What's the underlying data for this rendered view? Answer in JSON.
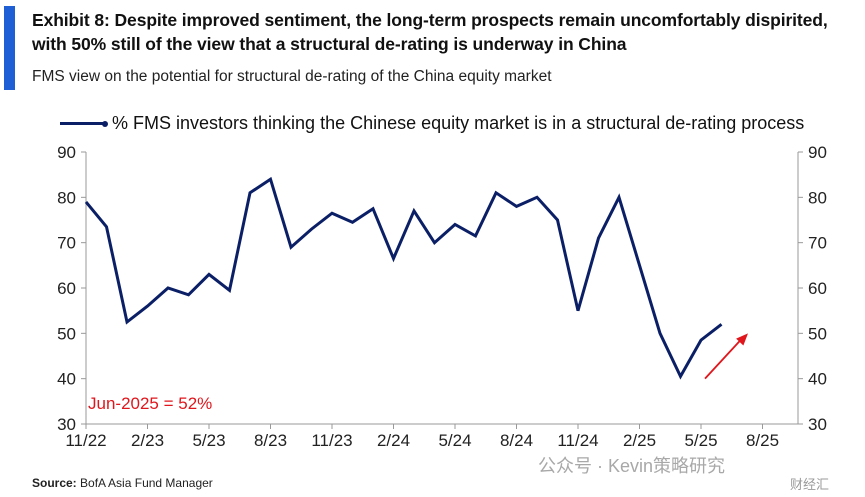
{
  "header": {
    "title": "Exhibit 8: Despite improved sentiment, the long-term prospects remain uncomfortably dispirited, with 50% still of the view that a structural de-rating is underway in China",
    "subtitle": "FMS view on the potential for structural de-rating of the China equity market"
  },
  "footer": {
    "source_label": "Source:",
    "source_text": "BofA Asia Fund Manager",
    "watermark": "公众号 · Kevin策略研究",
    "watermark2": "财经汇"
  },
  "colors": {
    "line": "#0b1f66",
    "accent": "#1f5fd6",
    "annotation": "#e0161c"
  },
  "chart_data": {
    "type": "line",
    "title": "FMS view on the potential for structural de-rating of the China equity market",
    "legend": "% FMS investors thinking the Chinese equity market is in a structural de-rating process",
    "ylim": [
      30,
      90
    ],
    "yticks": [
      "90",
      "80",
      "70",
      "60",
      "50",
      "40",
      "30"
    ],
    "ytick_values": [
      90,
      80,
      70,
      60,
      50,
      40,
      30
    ],
    "xticks": [
      "11/22",
      "2/23",
      "5/23",
      "8/23",
      "11/23",
      "2/24",
      "5/24",
      "8/24",
      "11/24",
      "2/25",
      "5/25",
      "8/25"
    ],
    "xtick_index": [
      0,
      3,
      6,
      9,
      12,
      15,
      18,
      21,
      24,
      27,
      30,
      33
    ],
    "x_count": 34,
    "series": [
      {
        "name": "% FMS investors thinking the Chinese equity market is in a structural de-rating process",
        "values": [
          79,
          73.5,
          52.5,
          56,
          60,
          58.5,
          63,
          59.5,
          81,
          84,
          69,
          73,
          76.5,
          74.5,
          77.5,
          66.5,
          77,
          70,
          74,
          71.5,
          81,
          78,
          80,
          75,
          55,
          71,
          80,
          65,
          50,
          40.5,
          48.5,
          52
        ]
      }
    ],
    "annotation": "Jun-2025 = 52%",
    "arrow": {
      "from": {
        "x": 30,
        "y": 40
      },
      "to": {
        "x": 32,
        "y": 50
      }
    }
  }
}
